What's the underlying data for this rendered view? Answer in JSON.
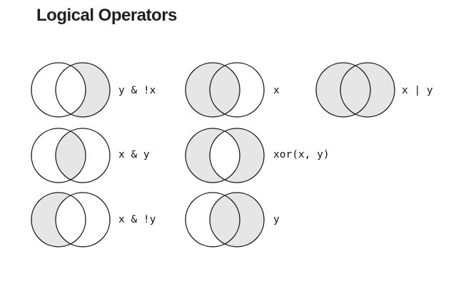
{
  "title": "Logical Operators",
  "colors": {
    "fill": "#e6e6e6",
    "stroke": "#1a1a1a",
    "background": "#ffffff"
  },
  "operators": [
    {
      "label": "y & !x",
      "shade": "y-only"
    },
    {
      "label": "x",
      "shade": "x"
    },
    {
      "label": "x | y",
      "shade": "union"
    },
    {
      "label": "x & y",
      "shade": "intersection"
    },
    {
      "label": "xor(x, y)",
      "shade": "xor"
    },
    {
      "label": "x & !y",
      "shade": "x-only"
    },
    {
      "label": "y",
      "shade": "y"
    }
  ]
}
